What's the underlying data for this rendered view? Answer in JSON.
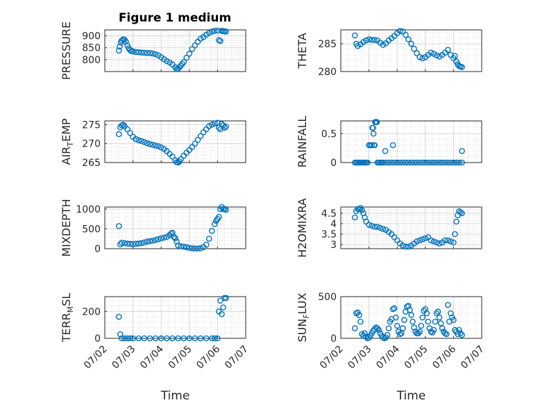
{
  "figure": {
    "title": "Figure 1 medium"
  },
  "marker_color": "#0072BD",
  "x_axis": {
    "label": "Time",
    "ticks": [
      "07/02",
      "07/03",
      "07/04",
      "07/05",
      "07/06",
      "07/07"
    ],
    "range_days": [
      2.0,
      7.0
    ]
  },
  "chart_data": [
    {
      "type": "scatter",
      "panel": "top-left",
      "ylabel": "PRESSURE",
      "ylim": [
        750,
        925
      ],
      "yticks": [
        800,
        850,
        900
      ],
      "grid": true,
      "minor_grid": true,
      "x": [
        2.5,
        2.53,
        2.57,
        2.6,
        2.65,
        2.7,
        2.75,
        2.8,
        2.85,
        2.9,
        2.95,
        3.0,
        3.1,
        3.2,
        3.3,
        3.4,
        3.5,
        3.6,
        3.7,
        3.8,
        3.9,
        4.0,
        4.1,
        4.2,
        4.3,
        4.4,
        4.5,
        4.55,
        4.6,
        4.65,
        4.7,
        4.75,
        4.8,
        4.9,
        5.0,
        5.1,
        5.2,
        5.3,
        5.4,
        5.5,
        5.6,
        5.7,
        5.8,
        5.9,
        6.0,
        6.05,
        6.1,
        6.15,
        6.2,
        6.25,
        6.3
      ],
      "y": [
        838,
        855,
        872,
        880,
        885,
        884,
        876,
        860,
        848,
        840,
        836,
        835,
        832,
        831,
        830,
        829,
        828,
        828,
        826,
        823,
        818,
        810,
        802,
        794,
        788,
        780,
        768,
        760,
        762,
        768,
        775,
        782,
        790,
        808,
        825,
        845,
        860,
        875,
        888,
        895,
        905,
        912,
        918,
        921,
        922,
        882,
        878,
        921,
        920,
        919,
        918
      ]
    },
    {
      "type": "scatter",
      "panel": "top-right",
      "ylabel": "THETA",
      "ylim": [
        280,
        287.5
      ],
      "yticks": [
        280,
        285
      ],
      "grid": true,
      "minor_grid": true,
      "x": [
        2.5,
        2.55,
        2.6,
        2.7,
        2.8,
        2.9,
        3.0,
        3.1,
        3.2,
        3.3,
        3.4,
        3.5,
        3.6,
        3.7,
        3.8,
        3.9,
        4.0,
        4.1,
        4.2,
        4.3,
        4.4,
        4.5,
        4.6,
        4.7,
        4.8,
        4.9,
        5.0,
        5.1,
        5.2,
        5.3,
        5.4,
        5.5,
        5.6,
        5.7,
        5.8,
        5.9,
        6.0,
        6.05,
        6.1,
        6.15,
        6.2,
        6.25,
        6.3
      ],
      "y": [
        286.5,
        285.0,
        284.6,
        284.9,
        285.3,
        285.6,
        285.8,
        285.7,
        285.7,
        285.6,
        285.2,
        284.8,
        285.1,
        285.6,
        286.0,
        286.4,
        286.9,
        287.3,
        287.2,
        286.6,
        285.8,
        285.0,
        284.1,
        283.3,
        282.6,
        282.4,
        282.6,
        283.0,
        283.4,
        283.2,
        282.9,
        282.7,
        283.0,
        283.4,
        283.9,
        283.0,
        282.4,
        282.8,
        281.8,
        281.3,
        281.0,
        280.9,
        280.8
      ]
    },
    {
      "type": "scatter",
      "panel": "row2-left",
      "ylabel": "AIR_TEMP",
      "ylim": [
        265,
        276
      ],
      "yticks": [
        265,
        270,
        275
      ],
      "grid": true,
      "minor_grid": true,
      "x": [
        2.5,
        2.55,
        2.6,
        2.65,
        2.7,
        2.8,
        2.9,
        3.0,
        3.1,
        3.2,
        3.3,
        3.4,
        3.5,
        3.6,
        3.7,
        3.8,
        3.9,
        4.0,
        4.1,
        4.2,
        4.3,
        4.4,
        4.5,
        4.55,
        4.6,
        4.65,
        4.7,
        4.8,
        4.9,
        5.0,
        5.1,
        5.2,
        5.3,
        5.4,
        5.5,
        5.6,
        5.7,
        5.8,
        5.9,
        6.0,
        6.05,
        6.1,
        6.15,
        6.2,
        6.25,
        6.3
      ],
      "y": [
        272.5,
        274.3,
        274.8,
        275.0,
        274.6,
        273.8,
        272.8,
        271.8,
        271.2,
        270.9,
        270.7,
        270.4,
        270.1,
        269.9,
        269.7,
        269.5,
        269.3,
        269.0,
        268.6,
        268.0,
        267.3,
        266.6,
        265.6,
        265.1,
        265.0,
        265.3,
        265.9,
        266.8,
        267.6,
        268.3,
        269.1,
        270.0,
        271.0,
        272.0,
        273.0,
        273.8,
        274.6,
        275.0,
        275.3,
        275.5,
        274.2,
        273.8,
        275.2,
        274.8,
        274.2,
        274.5
      ]
    },
    {
      "type": "scatter",
      "panel": "row2-right",
      "ylabel": "RAINFALL",
      "ylim": [
        0,
        0.72
      ],
      "yticks": [
        0,
        0.5
      ],
      "grid": true,
      "minor_grid": true,
      "x": [
        2.5,
        2.55,
        2.6,
        2.65,
        2.7,
        2.75,
        2.8,
        2.85,
        2.9,
        2.95,
        3.0,
        3.05,
        3.1,
        3.12,
        3.14,
        3.16,
        3.18,
        3.2,
        3.22,
        3.24,
        3.26,
        3.28,
        3.3,
        3.35,
        3.4,
        3.45,
        3.5,
        3.6,
        3.7,
        3.8,
        3.9,
        4.0,
        4.1,
        4.2,
        4.3,
        4.4,
        4.5,
        4.6,
        4.7,
        4.8,
        4.9,
        5.0,
        5.1,
        5.2,
        5.3,
        5.4,
        5.5,
        5.6,
        5.7,
        5.8,
        5.9,
        6.0,
        6.1,
        6.2,
        6.3,
        3.58,
        3.85,
        6.3
      ],
      "y": [
        0,
        0,
        0,
        0,
        0,
        0,
        0,
        0,
        0,
        0,
        0.3,
        0.3,
        0.3,
        0.6,
        0.6,
        0.5,
        0.3,
        0.3,
        0.7,
        0.7,
        0.7,
        0.7,
        0,
        0,
        0,
        0,
        0,
        0,
        0,
        0,
        0,
        0,
        0,
        0,
        0,
        0,
        0,
        0,
        0,
        0,
        0,
        0,
        0,
        0,
        0,
        0,
        0,
        0,
        0,
        0,
        0,
        0,
        0,
        0,
        0,
        0.2,
        0.3,
        0.2
      ]
    },
    {
      "type": "scatter",
      "panel": "row3-left",
      "ylabel": "MIXDEPTH",
      "ylim": [
        0,
        1050
      ],
      "yticks": [
        0,
        500,
        1000
      ],
      "grid": true,
      "minor_grid": true,
      "x": [
        2.5,
        2.55,
        2.6,
        2.7,
        2.8,
        2.9,
        3.0,
        3.1,
        3.2,
        3.3,
        3.4,
        3.5,
        3.6,
        3.7,
        3.8,
        3.9,
        4.0,
        4.1,
        4.2,
        4.3,
        4.35,
        4.4,
        4.45,
        4.5,
        4.55,
        4.6,
        4.7,
        4.8,
        4.9,
        5.0,
        5.1,
        5.2,
        5.3,
        5.4,
        5.5,
        5.6,
        5.7,
        5.8,
        5.9,
        5.95,
        6.0,
        6.05,
        6.1,
        6.15,
        6.2,
        6.25,
        6.3
      ],
      "y": [
        570,
        110,
        150,
        140,
        130,
        120,
        115,
        125,
        130,
        140,
        160,
        180,
        190,
        200,
        220,
        240,
        260,
        280,
        300,
        340,
        380,
        400,
        300,
        260,
        180,
        80,
        60,
        50,
        40,
        20,
        10,
        5,
        5,
        10,
        40,
        100,
        250,
        450,
        620,
        700,
        750,
        800,
        1000,
        1050,
        1000,
        1000,
        980
      ]
    },
    {
      "type": "scatter",
      "panel": "row3-right",
      "ylabel": "H2OMIXRA",
      "ylim": [
        2.8,
        4.8
      ],
      "yticks": [
        3,
        3.5,
        4,
        4.5
      ],
      "grid": true,
      "minor_grid": true,
      "x": [
        2.5,
        2.55,
        2.6,
        2.65,
        2.7,
        2.75,
        2.8,
        2.85,
        2.9,
        3.0,
        3.1,
        3.2,
        3.3,
        3.4,
        3.5,
        3.6,
        3.7,
        3.8,
        3.9,
        4.0,
        4.1,
        4.2,
        4.3,
        4.4,
        4.5,
        4.6,
        4.7,
        4.8,
        4.9,
        5.0,
        5.1,
        5.2,
        5.3,
        5.4,
        5.5,
        5.6,
        5.7,
        5.8,
        5.9,
        6.0,
        6.05,
        6.1,
        6.15,
        6.2,
        6.25,
        6.3
      ],
      "y": [
        4.3,
        4.6,
        4.7,
        4.7,
        4.75,
        4.65,
        4.5,
        4.3,
        4.1,
        3.95,
        3.9,
        3.85,
        3.85,
        3.8,
        3.75,
        3.7,
        3.6,
        3.5,
        3.35,
        3.2,
        3.05,
        2.95,
        2.9,
        2.9,
        2.95,
        3.05,
        3.15,
        3.2,
        3.25,
        3.3,
        3.35,
        3.2,
        3.15,
        3.1,
        3.05,
        3.1,
        3.2,
        3.2,
        3.15,
        3.1,
        3.5,
        4.1,
        4.4,
        4.6,
        4.55,
        4.5
      ]
    },
    {
      "type": "scatter",
      "panel": "bottom-left",
      "ylabel": "TERR_MSL",
      "ylim": [
        0,
        310
      ],
      "yticks": [
        0,
        200
      ],
      "grid": true,
      "minor_grid": true,
      "x": [
        2.5,
        2.55,
        2.6,
        2.7,
        2.8,
        2.9,
        3.0,
        3.2,
        3.4,
        3.6,
        3.8,
        4.0,
        4.2,
        4.4,
        4.6,
        4.8,
        5.0,
        5.2,
        5.4,
        5.6,
        5.8,
        5.9,
        6.0,
        6.05,
        6.1,
        6.15,
        6.2,
        6.25,
        6.3
      ],
      "y": [
        160,
        30,
        0,
        0,
        0,
        0,
        0,
        0,
        0,
        0,
        0,
        0,
        0,
        0,
        0,
        0,
        0,
        0,
        0,
        0,
        0,
        0,
        0,
        200,
        280,
        180,
        230,
        300,
        300
      ]
    },
    {
      "type": "scatter",
      "panel": "bottom-right",
      "ylabel": "SUN_FLUX",
      "ylim": [
        0,
        500
      ],
      "yticks": [
        0,
        500
      ],
      "grid": true,
      "minor_grid": true,
      "x": [
        2.5,
        2.55,
        2.6,
        2.65,
        2.7,
        2.75,
        2.8,
        2.85,
        2.9,
        2.95,
        3.0,
        3.05,
        3.1,
        3.15,
        3.2,
        3.25,
        3.3,
        3.35,
        3.4,
        3.45,
        3.5,
        3.55,
        3.6,
        3.65,
        3.7,
        3.75,
        3.8,
        3.85,
        3.9,
        3.95,
        4.0,
        4.05,
        4.1,
        4.15,
        4.2,
        4.25,
        4.3,
        4.35,
        4.4,
        4.45,
        4.5,
        4.55,
        4.6,
        4.65,
        4.7,
        4.75,
        4.8,
        4.85,
        4.9,
        4.95,
        5.0,
        5.05,
        5.1,
        5.15,
        5.2,
        5.25,
        5.3,
        5.35,
        5.4,
        5.45,
        5.5,
        5.55,
        5.6,
        5.65,
        5.7,
        5.75,
        5.8,
        5.85,
        5.9,
        5.95,
        6.0,
        6.05,
        6.1,
        6.15,
        6.2,
        6.25,
        6.3
      ],
      "y": [
        120,
        300,
        310,
        280,
        200,
        50,
        30,
        60,
        20,
        0,
        10,
        30,
        60,
        90,
        110,
        130,
        120,
        100,
        60,
        30,
        10,
        0,
        10,
        40,
        120,
        200,
        230,
        350,
        360,
        250,
        150,
        80,
        50,
        60,
        120,
        220,
        320,
        380,
        390,
        340,
        280,
        200,
        130,
        80,
        60,
        60,
        80,
        150,
        250,
        330,
        350,
        300,
        200,
        120,
        80,
        70,
        100,
        200,
        300,
        320,
        250,
        180,
        120,
        80,
        60,
        50,
        400,
        200,
        300,
        250,
        220,
        100,
        80,
        50,
        100,
        60,
        40
      ]
    }
  ]
}
